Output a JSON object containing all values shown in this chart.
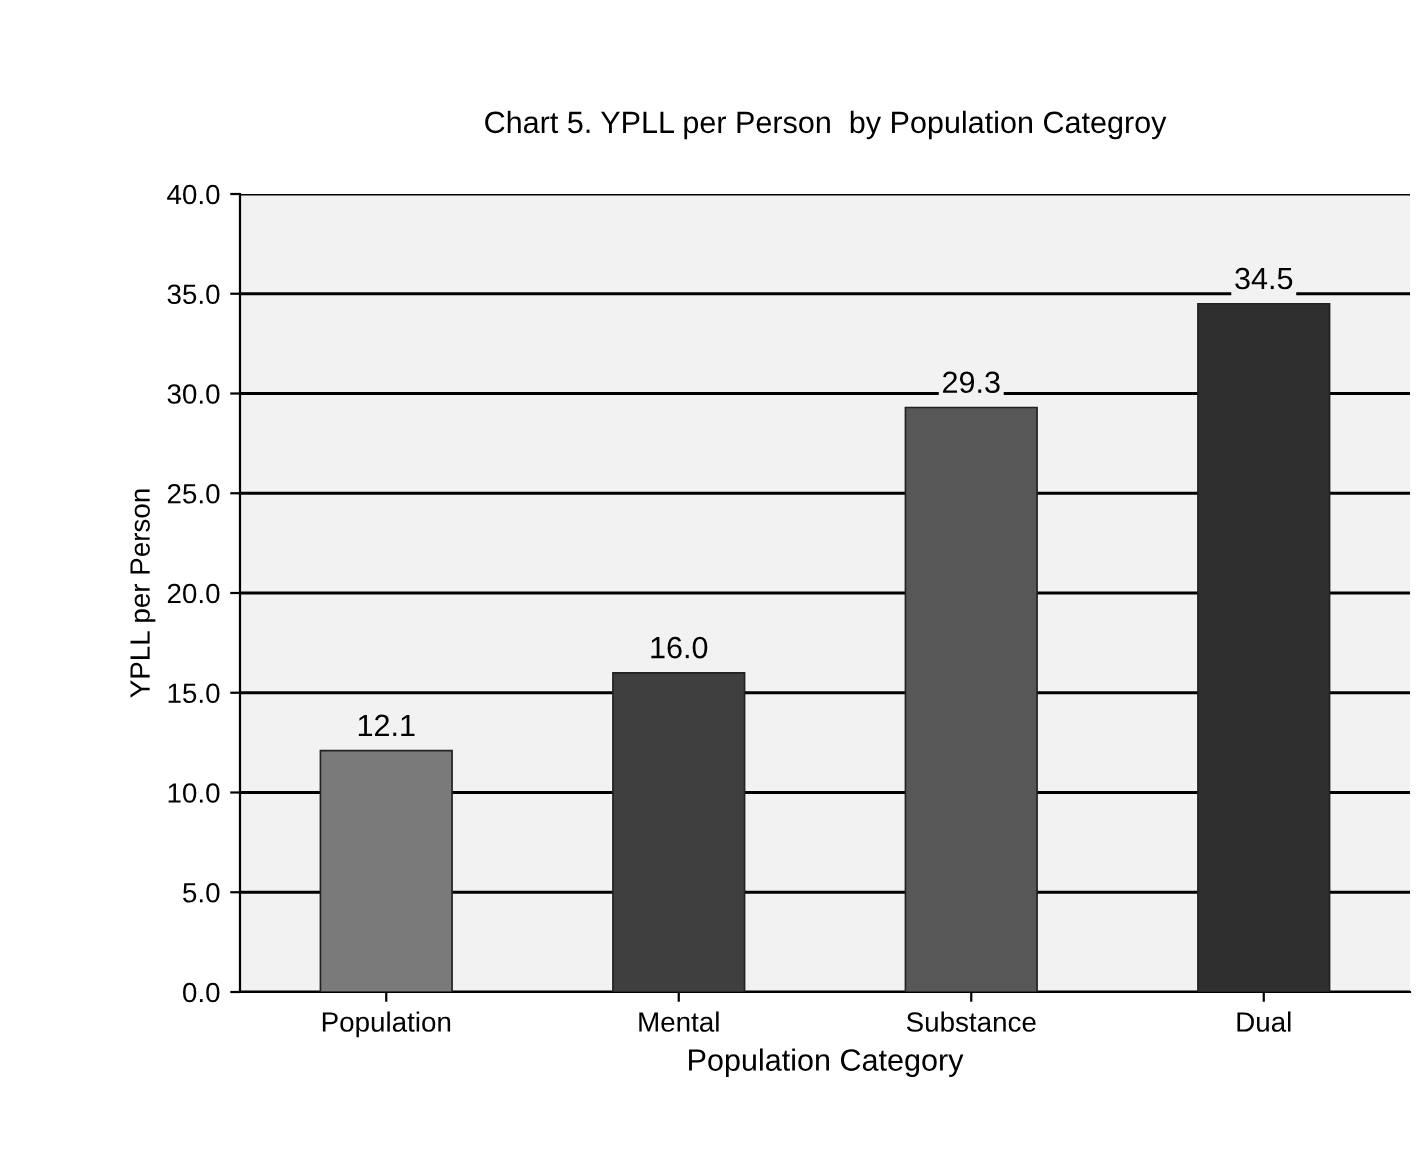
{
  "chart_data": {
    "type": "bar",
    "title": "Chart 5. YPLL per Person  by Population Categroy",
    "xlabel": "Population Category",
    "ylabel": "YPLL per Person",
    "categories": [
      "Population",
      "Mental",
      "Substance",
      "Dual"
    ],
    "values": [
      12.1,
      16.0,
      29.3,
      34.5
    ],
    "colors": [
      "#7a7a7a",
      "#3f3f3f",
      "#575757",
      "#2f2f2f"
    ],
    "ylim": [
      0,
      40
    ],
    "yticks": [
      {
        "value": 0,
        "label": "0.0"
      },
      {
        "value": 5,
        "label": "5.0"
      },
      {
        "value": 10,
        "label": "10.0"
      },
      {
        "value": 15,
        "label": "15.0"
      },
      {
        "value": 20,
        "label": "20.0"
      },
      {
        "value": 25,
        "label": "25.0"
      },
      {
        "value": 30,
        "label": "30.0"
      },
      {
        "value": 35,
        "label": "35.0"
      },
      {
        "value": 40,
        "label": "40.0"
      }
    ],
    "value_labels": [
      "12.1",
      "16.0",
      "29.3",
      "34.5"
    ],
    "grid": "y"
  }
}
